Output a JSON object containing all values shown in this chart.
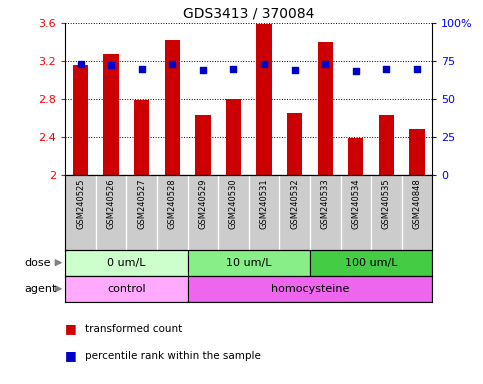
{
  "title": "GDS3413 / 370084",
  "samples": [
    "GSM240525",
    "GSM240526",
    "GSM240527",
    "GSM240528",
    "GSM240529",
    "GSM240530",
    "GSM240531",
    "GSM240532",
    "GSM240533",
    "GSM240534",
    "GSM240535",
    "GSM240848"
  ],
  "bar_values": [
    3.16,
    3.27,
    2.79,
    3.42,
    2.63,
    2.8,
    3.59,
    2.65,
    3.4,
    2.39,
    2.63,
    2.48
  ],
  "dot_values": [
    3.17,
    3.16,
    3.12,
    3.17,
    3.1,
    3.11,
    3.17,
    3.1,
    3.17,
    3.09,
    3.11,
    3.11
  ],
  "bar_color": "#cc0000",
  "dot_color": "#0000cc",
  "ylim": [
    2.0,
    3.6
  ],
  "y_ticks": [
    2.0,
    2.4,
    2.8,
    3.2,
    3.6
  ],
  "ytick_labels_left": [
    "2",
    "2.4",
    "2.8",
    "3.2",
    "3.6"
  ],
  "ytick_labels_right": [
    "0",
    "25",
    "50",
    "75",
    "100%"
  ],
  "dose_groups": [
    {
      "label": "0 um/L",
      "start": 0,
      "end": 4,
      "color": "#ccffcc"
    },
    {
      "label": "10 um/L",
      "start": 4,
      "end": 8,
      "color": "#88ee88"
    },
    {
      "label": "100 um/L",
      "start": 8,
      "end": 12,
      "color": "#44cc44"
    }
  ],
  "agent_groups": [
    {
      "label": "control",
      "start": 0,
      "end": 4,
      "color": "#ffaaff"
    },
    {
      "label": "homocysteine",
      "start": 4,
      "end": 12,
      "color": "#ee66ee"
    }
  ],
  "xtick_bg_color": "#cccccc",
  "dose_label": "dose",
  "agent_label": "agent",
  "legend_bar_label": "transformed count",
  "legend_dot_label": "percentile rank within the sample"
}
